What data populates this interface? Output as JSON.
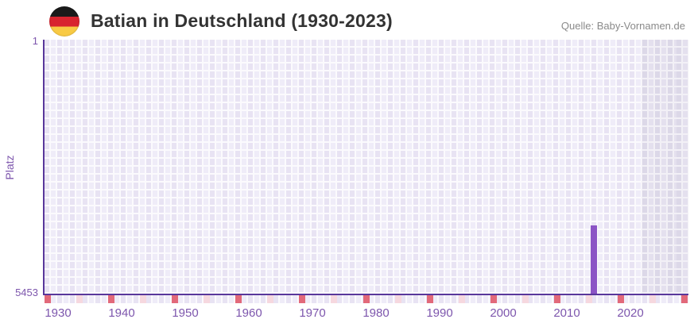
{
  "header": {
    "title": "Batian in Deutschland (1930-2023)",
    "source": "Quelle: Baby-Vornamen.de"
  },
  "chart_data": {
    "type": "bar",
    "title": "Batian in Deutschland (1930-2023)",
    "xlabel": "",
    "ylabel": "Platz",
    "x_range": [
      1930,
      2023
    ],
    "x_tick_labels": [
      "1930",
      "1940",
      "1950",
      "1960",
      "1970",
      "1980",
      "1990",
      "2000",
      "2010",
      "2020"
    ],
    "y_axis": {
      "top_label": "1",
      "bottom_label": "5453",
      "min": 1,
      "max": 5453,
      "inverted": true
    },
    "series": [
      {
        "name": "Batian",
        "points": [
          {
            "year": 2014,
            "rank": 3990
          }
        ]
      }
    ],
    "legend": "none",
    "grid": "on",
    "recent_period_shaded": "2020-2023",
    "colors": {
      "bar": "#8b54c5",
      "axis_line": "#59379b",
      "axis_label": "#7d56ad",
      "tick_red": "#e2697a",
      "tick_pink": "#f6d8df",
      "cell_dark": "#e8e3f3",
      "cell_light": "#efecf8",
      "gridline": "#fbfafd",
      "recent_cell_dark": "#dcd8e8",
      "recent_cell_light": "#e4e0ee",
      "recent_gridline": "#f2f0f6",
      "title_text": "#333333",
      "source_text": "#8a8a8a",
      "flag_black": "#1a1a1a",
      "flag_red": "#d8242f",
      "flag_gold": "#f8ca44"
    }
  }
}
